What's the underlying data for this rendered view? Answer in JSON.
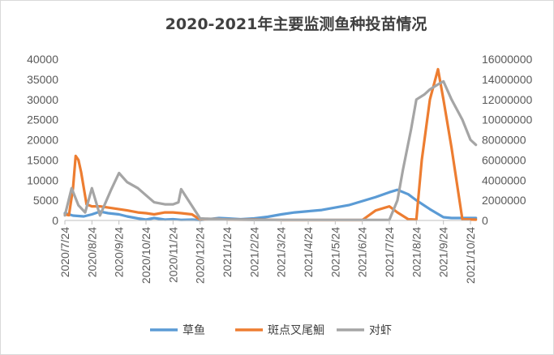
{
  "chart_data": {
    "type": "line",
    "title": "2020-2021年主要监测鱼种投苗情况",
    "xlabel": "",
    "ylabel": "",
    "x_ticks": [
      "2020/7/24",
      "2020/8/24",
      "2020/9/24",
      "2020/10/24",
      "2020/11/24",
      "2020/12/24",
      "2021/1/24",
      "2021/2/24",
      "2021/3/24",
      "2021/4/24",
      "2021/5/24",
      "2021/6/24",
      "2021/7/24",
      "2021/8/24",
      "2021/9/24",
      "2021/10/24"
    ],
    "y_left_ticks": [
      "0",
      "5000",
      "10000",
      "15000",
      "20000",
      "25000",
      "30000",
      "35000",
      "40000"
    ],
    "y_right_ticks": [
      "0",
      "2000000",
      "4000000",
      "6000000",
      "8000000",
      "10000000",
      "12000000",
      "14000000",
      "16000000"
    ],
    "ylim_left": [
      0,
      40000
    ],
    "ylim_right": [
      0,
      16000000
    ],
    "series": [
      {
        "name": "草鱼",
        "axis": "left",
        "color": "#5b9bd5",
        "x": [
          0,
          0.3,
          0.7,
          1.0,
          1.3,
          1.6,
          2.0,
          2.3,
          2.7,
          3.0,
          3.3,
          3.7,
          4.0,
          4.3,
          4.7,
          5.0,
          5.3,
          5.7,
          6.0,
          6.5,
          7.0,
          7.5,
          8.0,
          8.5,
          9.0,
          9.5,
          10.0,
          10.5,
          11.0,
          11.5,
          12.0,
          12.3,
          12.7,
          13.0,
          13.5,
          14.0,
          14.3,
          14.7,
          15.0,
          15.2
        ],
        "values": [
          1800,
          1200,
          1000,
          1500,
          2200,
          1800,
          1500,
          1000,
          500,
          200,
          600,
          200,
          300,
          150,
          200,
          100,
          300,
          600,
          500,
          300,
          500,
          900,
          1500,
          2000,
          2300,
          2600,
          3200,
          3800,
          4800,
          5800,
          7000,
          7600,
          6500,
          5000,
          2800,
          800,
          600,
          600,
          600,
          600
        ]
      },
      {
        "name": "斑点叉尾鮰",
        "axis": "left",
        "color": "#ed7d31",
        "x": [
          0,
          0.15,
          0.3,
          0.4,
          0.5,
          0.6,
          0.8,
          1.0,
          1.3,
          1.6,
          2.0,
          2.3,
          2.7,
          3.0,
          3.3,
          3.7,
          4.0,
          4.3,
          4.7,
          5.0,
          5.5,
          6.0,
          7.0,
          8.0,
          9.0,
          10.0,
          11.0,
          11.5,
          12.0,
          12.3,
          12.7,
          13.0,
          13.2,
          13.5,
          13.8,
          14.0,
          14.3,
          14.7,
          15.2
        ],
        "values": [
          1500,
          1300,
          8000,
          16000,
          15000,
          12000,
          4000,
          3500,
          3500,
          3200,
          2800,
          2500,
          2000,
          1800,
          1500,
          2000,
          2000,
          1800,
          1500,
          200,
          400,
          200,
          200,
          100,
          100,
          100,
          100,
          2500,
          3500,
          2000,
          300,
          200,
          15000,
          30000,
          37500,
          30000,
          18000,
          300,
          200
        ]
      },
      {
        "name": "对虾",
        "axis": "right",
        "color": "#a5a5a5",
        "x": [
          0,
          0.25,
          0.5,
          0.75,
          1.0,
          1.3,
          1.7,
          2.0,
          2.3,
          2.7,
          3.0,
          3.3,
          3.7,
          4.0,
          4.2,
          4.3,
          5.0,
          6.0,
          7.0,
          8.0,
          9.0,
          10.0,
          11.0,
          11.5,
          12.0,
          12.3,
          12.5,
          12.8,
          13.0,
          13.3,
          13.5,
          13.8,
          14.0,
          14.3,
          14.7,
          15.0,
          15.2
        ],
        "values": [
          500000,
          3200000,
          1500000,
          800000,
          3200000,
          500000,
          3000000,
          4700000,
          3800000,
          3200000,
          2500000,
          1800000,
          1600000,
          1600000,
          1800000,
          3100000,
          200000,
          100000,
          50000,
          50000,
          50000,
          50000,
          50000,
          50000,
          50000,
          2000000,
          5000000,
          9000000,
          12000000,
          12500000,
          13000000,
          13500000,
          13800000,
          12000000,
          10000000,
          8000000,
          7500000
        ]
      }
    ],
    "legend_position": "bottom",
    "grid": false
  }
}
